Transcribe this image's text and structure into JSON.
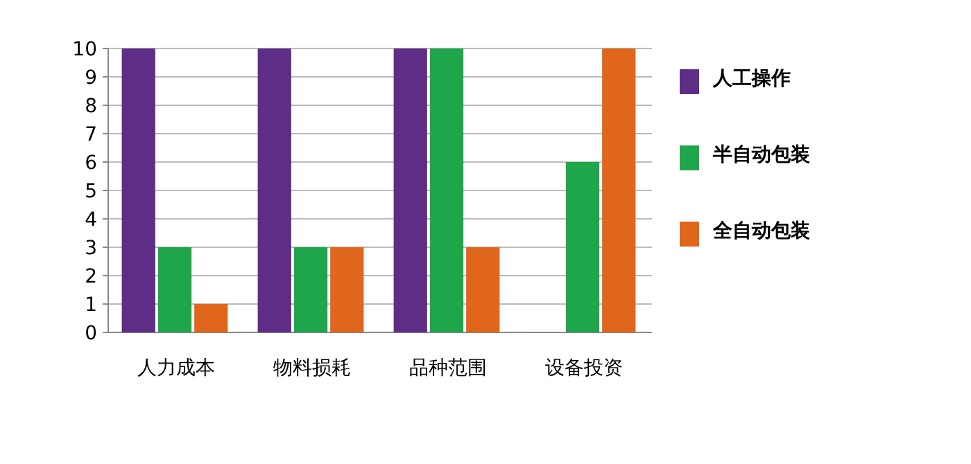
{
  "chart_data": {
    "type": "bar",
    "categories": [
      "人力成本",
      "物料损耗",
      "品种范围",
      "设备投资"
    ],
    "series": [
      {
        "name": "人工操作",
        "color": "#5e2d86",
        "values": [
          10,
          10,
          10,
          0
        ]
      },
      {
        "name": "半自动包装",
        "color": "#1fa64a",
        "values": [
          3,
          3,
          10,
          6
        ]
      },
      {
        "name": "全自动包装",
        "color": "#e0661c",
        "values": [
          1,
          3,
          3,
          10
        ]
      }
    ],
    "ylim": [
      0,
      10
    ],
    "yticks": [
      0,
      1,
      2,
      3,
      4,
      5,
      6,
      7,
      8,
      9,
      10
    ],
    "grid": "y",
    "legend": "right"
  }
}
